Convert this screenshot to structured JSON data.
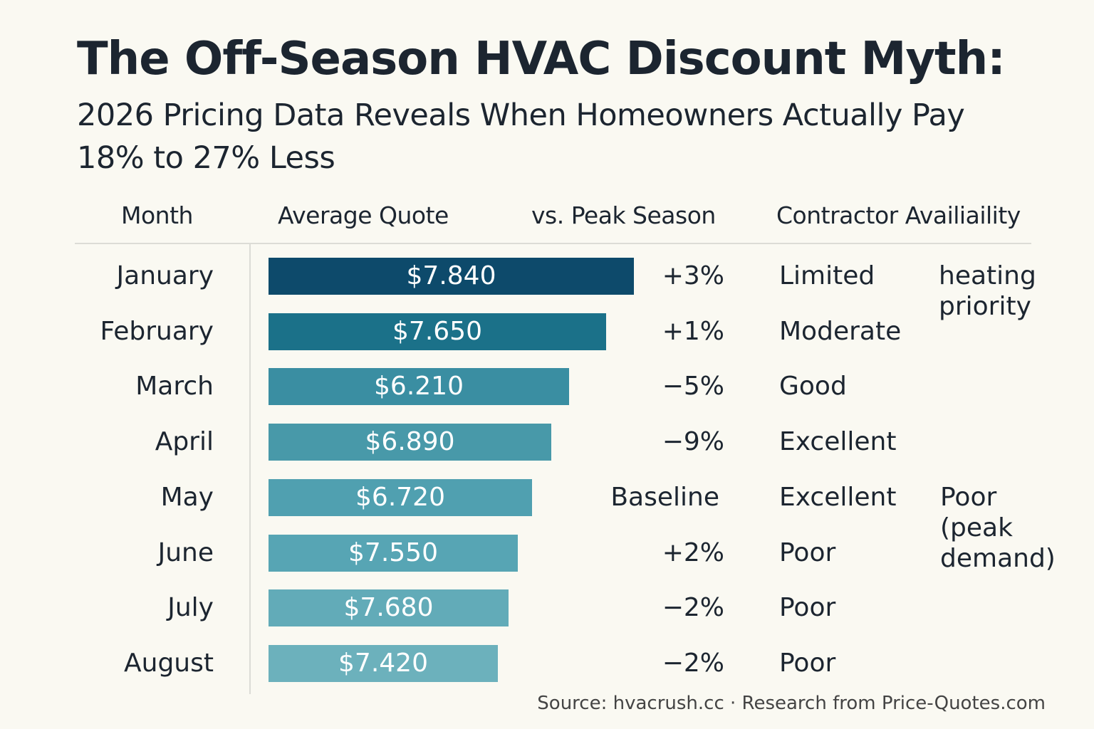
{
  "header": {
    "title": "The Off-Season HVAC Discount Myth:",
    "subtitle": "2026 Pricing Data Reveals When Homeowners Actually Pay 18% to 27% Less"
  },
  "table": {
    "columns": [
      "Month",
      "Average Quote",
      "vs. Peak Season",
      "Contractor Availiaility"
    ],
    "rows": [
      [
        "January",
        "$7.840",
        "+3%",
        "Limited"
      ],
      [
        "February",
        "$7.650",
        "+1%",
        "Moderate"
      ],
      [
        "March",
        "$6.210",
        "−5%",
        "Good"
      ],
      [
        "April",
        "$6.890",
        "−9%",
        "Excellent"
      ],
      [
        "May",
        "$6.720",
        "Baseline",
        "Excellent"
      ],
      [
        "June",
        "$7.550",
        "+2%",
        "Poor"
      ],
      [
        "July",
        "$7.680",
        "−2%",
        "Poor"
      ],
      [
        "August",
        "$7.420",
        "−2%",
        "Poor"
      ]
    ],
    "notes": [
      "heating priority",
      "Poor (peak demand)"
    ]
  },
  "source": "Source: hvacrush.cc · Research from Price-Quotes.com"
}
